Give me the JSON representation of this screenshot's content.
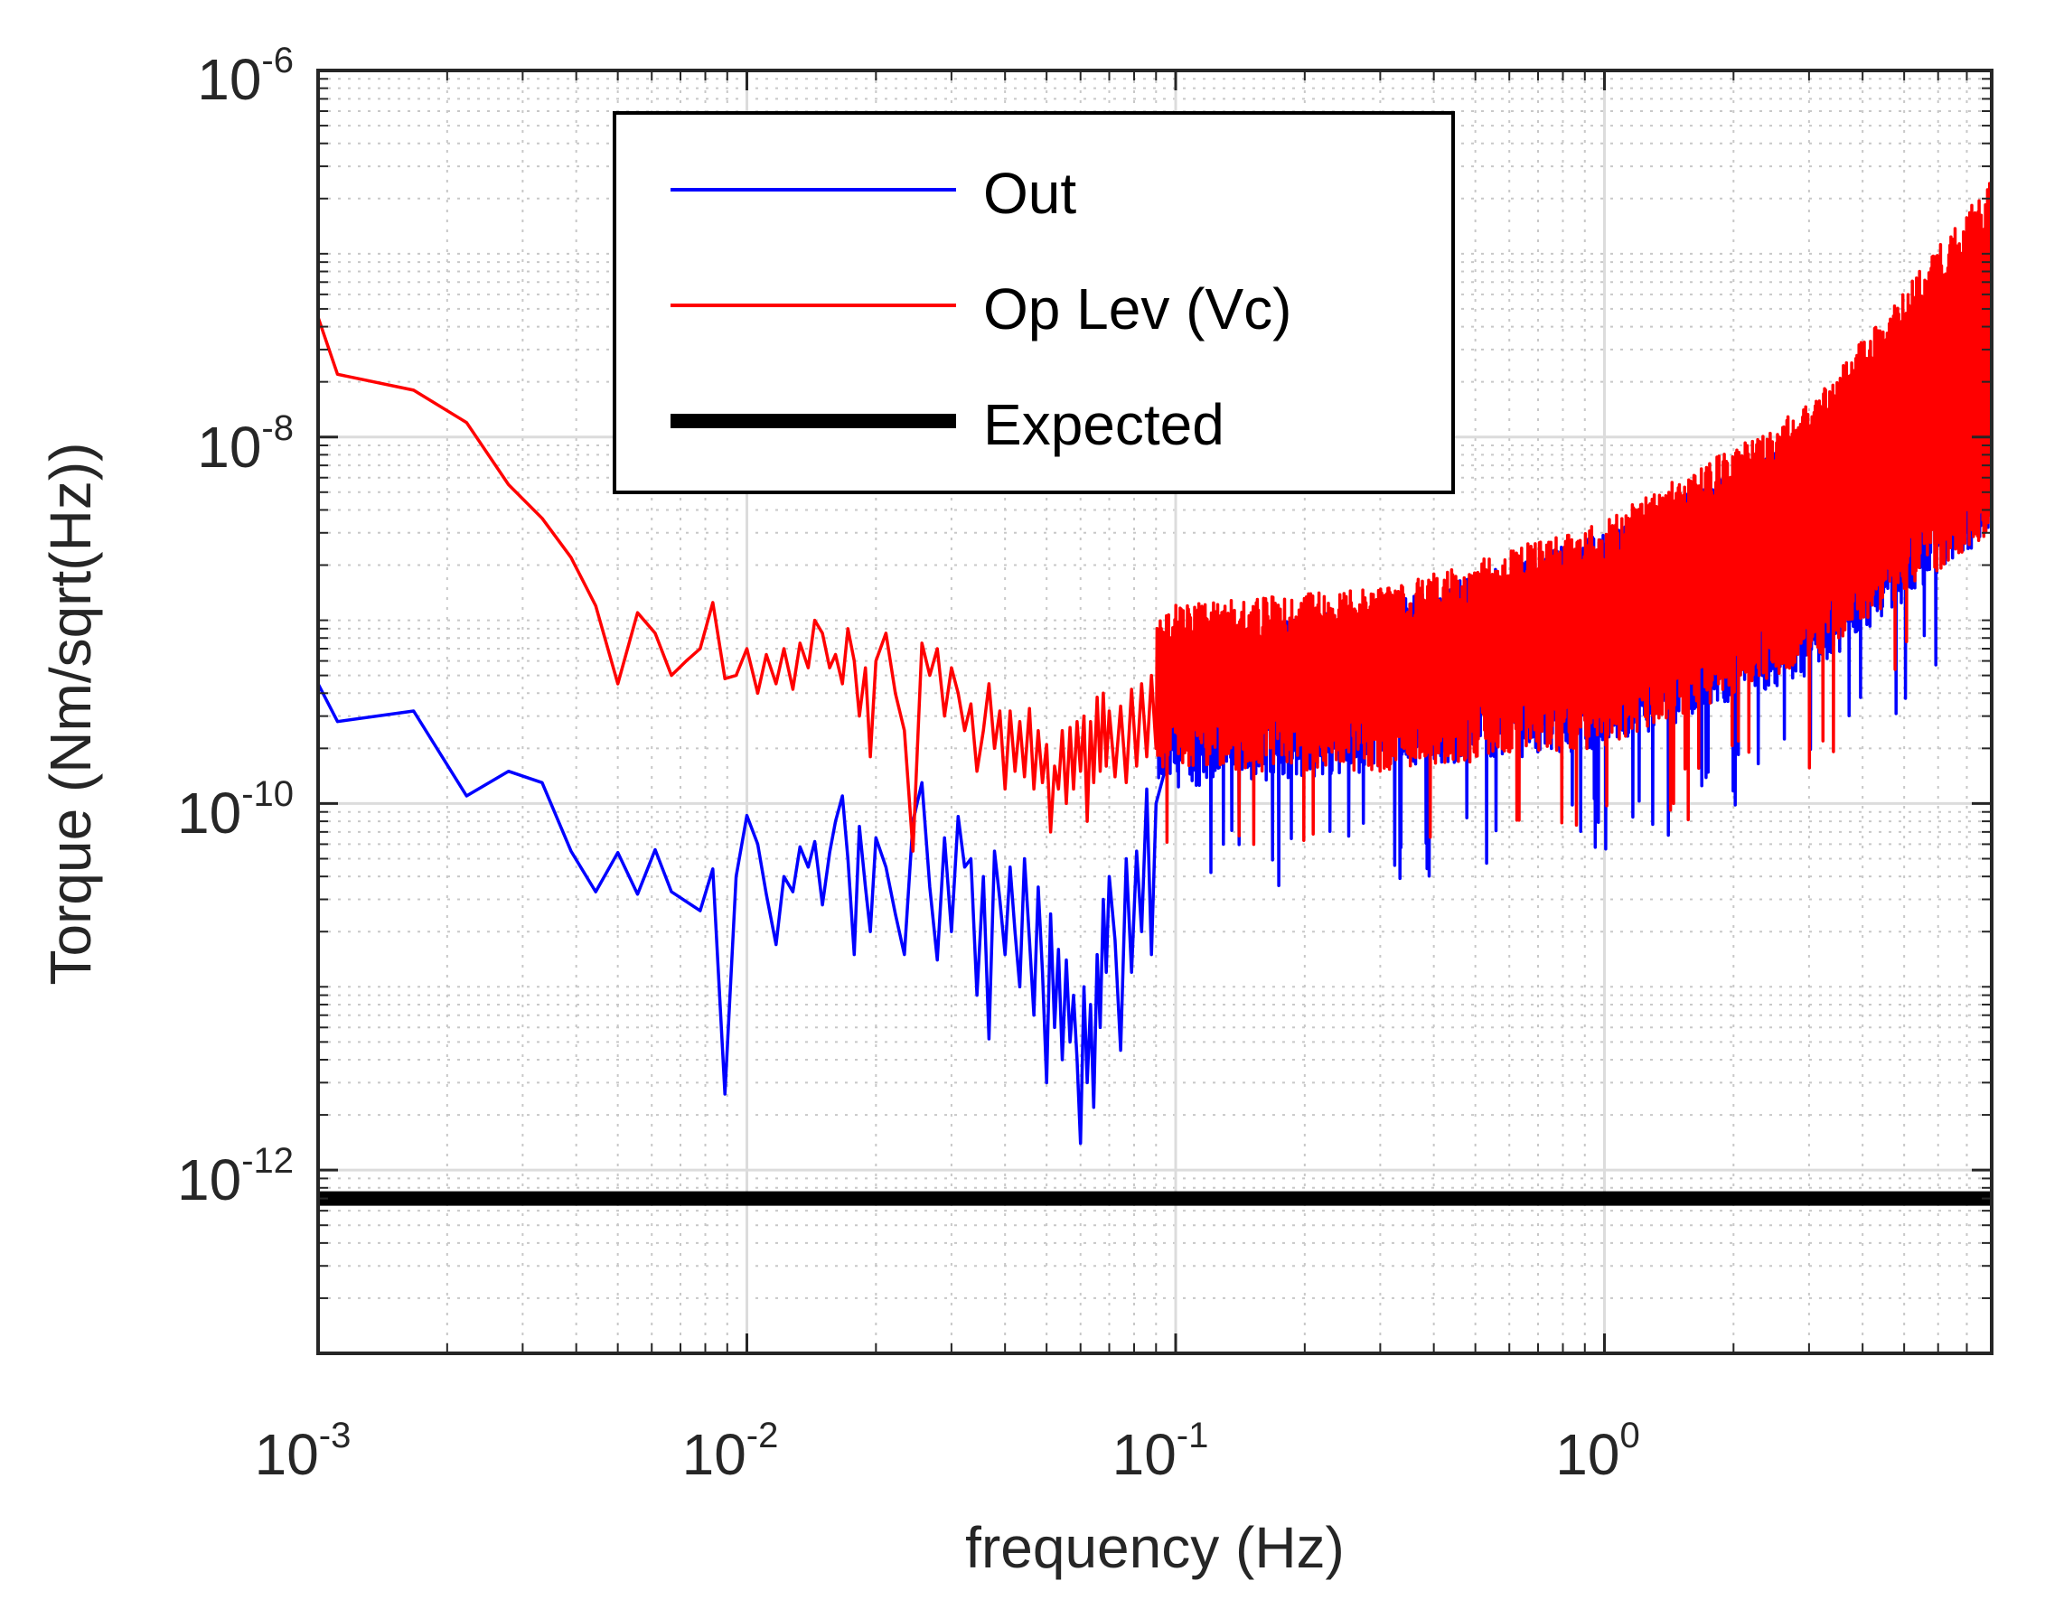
{
  "chart_data": {
    "type": "line",
    "title": "",
    "xlabel": "frequency (Hz)",
    "ylabel": "Torque (Nm/sqrt(Hz))",
    "xscale": "log",
    "yscale": "log",
    "xlim": [
      0.001,
      8
    ],
    "ylim": [
      1e-13,
      1e-06
    ],
    "grid": true,
    "x_ticks": [
      {
        "value": 0.001,
        "base": "10",
        "exp": "-3"
      },
      {
        "value": 0.01,
        "base": "10",
        "exp": "-2"
      },
      {
        "value": 0.1,
        "base": "10",
        "exp": "-1"
      },
      {
        "value": 1,
        "base": "10",
        "exp": "0"
      }
    ],
    "y_ticks": [
      {
        "value": 1e-12,
        "base": "10",
        "exp": "-12"
      },
      {
        "value": 1e-10,
        "base": "10",
        "exp": "-10"
      },
      {
        "value": 1e-08,
        "base": "10",
        "exp": "-8"
      },
      {
        "value": 1e-06,
        "base": "10",
        "exp": "-6"
      }
    ],
    "legend": {
      "location": "top-center",
      "entries": [
        {
          "label": "Out",
          "series": "out"
        },
        {
          "label": "Op Lev (Vc)",
          "series": "oplev"
        },
        {
          "label": "Expected",
          "series": "expected"
        }
      ]
    },
    "series": [
      {
        "id": "out",
        "name": "Out",
        "color": "#0000ff",
        "line_weight": "thin",
        "points": [
          [
            0.001,
            4.5e-10
          ],
          [
            0.00111,
            2.8e-10
          ],
          [
            0.00167,
            3.2e-10
          ],
          [
            0.00222,
            1.1e-10
          ],
          [
            0.00278,
            1.5e-10
          ],
          [
            0.00333,
            1.3e-10
          ],
          [
            0.00389,
            5.5e-11
          ],
          [
            0.00444,
            3.3e-11
          ],
          [
            0.005,
            5.4e-11
          ],
          [
            0.00556,
            3.2e-11
          ],
          [
            0.00611,
            5.6e-11
          ],
          [
            0.00667,
            3.3e-11
          ],
          [
            0.00778,
            2.6e-11
          ],
          [
            0.00833,
            4.4e-11
          ],
          [
            0.00889,
            2.6e-12
          ],
          [
            0.00944,
            4e-11
          ],
          [
            0.01,
            8.6e-11
          ],
          [
            0.0106,
            6e-11
          ],
          [
            0.0111,
            3.2e-11
          ],
          [
            0.0117,
            1.7e-11
          ],
          [
            0.0122,
            4e-11
          ],
          [
            0.0128,
            3.3e-11
          ],
          [
            0.0133,
            5.8e-11
          ],
          [
            0.0139,
            4.5e-11
          ],
          [
            0.0144,
            6.2e-11
          ],
          [
            0.015,
            2.8e-11
          ],
          [
            0.0156,
            5.4e-11
          ],
          [
            0.0161,
            8e-11
          ],
          [
            0.0167,
            1.1e-10
          ],
          [
            0.0172,
            5e-11
          ],
          [
            0.0178,
            1.5e-11
          ],
          [
            0.0183,
            7.5e-11
          ],
          [
            0.0189,
            3.5e-11
          ],
          [
            0.0194,
            2e-11
          ],
          [
            0.02,
            6.5e-11
          ],
          [
            0.0211,
            4.5e-11
          ],
          [
            0.0222,
            2.5e-11
          ],
          [
            0.0233,
            1.5e-11
          ],
          [
            0.0244,
            8e-11
          ],
          [
            0.0256,
            1.3e-10
          ],
          [
            0.0267,
            3.5e-11
          ],
          [
            0.0278,
            1.4e-11
          ],
          [
            0.0289,
            6.5e-11
          ],
          [
            0.03,
            2e-11
          ],
          [
            0.0311,
            8.5e-11
          ],
          [
            0.0322,
            4.5e-11
          ],
          [
            0.0333,
            5e-11
          ],
          [
            0.0344,
            9e-12
          ],
          [
            0.0356,
            4e-11
          ],
          [
            0.0367,
            5.2e-12
          ],
          [
            0.0378,
            5.5e-11
          ],
          [
            0.0389,
            3e-11
          ],
          [
            0.04,
            1.5e-11
          ],
          [
            0.0411,
            4.5e-11
          ],
          [
            0.0422,
            2e-11
          ],
          [
            0.0433,
            1e-11
          ],
          [
            0.0444,
            5e-11
          ],
          [
            0.0456,
            1.8e-11
          ],
          [
            0.0467,
            7e-12
          ],
          [
            0.0478,
            3.5e-11
          ],
          [
            0.0489,
            1.2e-11
          ],
          [
            0.05,
            3e-12
          ],
          [
            0.0511,
            2.5e-11
          ],
          [
            0.0522,
            6e-12
          ],
          [
            0.0533,
            1.6e-11
          ],
          [
            0.0544,
            4e-12
          ],
          [
            0.0556,
            1.4e-11
          ],
          [
            0.0567,
            5e-12
          ],
          [
            0.0578,
            9e-12
          ],
          [
            0.0589,
            4e-12
          ],
          [
            0.06,
            1.4e-12
          ],
          [
            0.0611,
            1e-11
          ],
          [
            0.0622,
            3e-12
          ],
          [
            0.0633,
            8e-12
          ],
          [
            0.0644,
            2.2e-12
          ],
          [
            0.0656,
            1.5e-11
          ],
          [
            0.0667,
            6e-12
          ],
          [
            0.0678,
            3e-11
          ],
          [
            0.0689,
            1.2e-11
          ],
          [
            0.07,
            4e-11
          ],
          [
            0.0722,
            1.8e-11
          ],
          [
            0.0744,
            4.5e-12
          ],
          [
            0.0767,
            5e-11
          ],
          [
            0.0789,
            1.2e-11
          ],
          [
            0.0811,
            5.5e-11
          ],
          [
            0.0833,
            2e-11
          ],
          [
            0.0856,
            1.2e-10
          ],
          [
            0.0878,
            1.5e-11
          ],
          [
            0.09,
            1e-10
          ],
          [
            0.1,
            2.5e-10
          ],
          [
            0.12,
            3e-10
          ]
        ]
      },
      {
        "id": "oplev",
        "name": "Op Lev (Vc)",
        "color": "#ff0000",
        "line_weight": "thin",
        "points": [
          [
            0.001,
            4.5e-08
          ],
          [
            0.00111,
            2.2e-08
          ],
          [
            0.00167,
            1.8e-08
          ],
          [
            0.00222,
            1.2e-08
          ],
          [
            0.00278,
            5.5e-09
          ],
          [
            0.00333,
            3.6e-09
          ],
          [
            0.00389,
            2.2e-09
          ],
          [
            0.00444,
            1.2e-09
          ],
          [
            0.005,
            4.5e-10
          ],
          [
            0.00556,
            1.1e-09
          ],
          [
            0.00611,
            8.5e-10
          ],
          [
            0.00667,
            5e-10
          ],
          [
            0.00722,
            6e-10
          ],
          [
            0.00778,
            7e-10
          ],
          [
            0.00833,
            1.25e-09
          ],
          [
            0.00889,
            4.8e-10
          ],
          [
            0.00944,
            5e-10
          ],
          [
            0.01,
            7e-10
          ],
          [
            0.0106,
            4e-10
          ],
          [
            0.0111,
            6.5e-10
          ],
          [
            0.0117,
            4.5e-10
          ],
          [
            0.0122,
            7e-10
          ],
          [
            0.0128,
            4.2e-10
          ],
          [
            0.0133,
            7.5e-10
          ],
          [
            0.0139,
            5.5e-10
          ],
          [
            0.0144,
            1e-09
          ],
          [
            0.015,
            8.5e-10
          ],
          [
            0.0156,
            5.5e-10
          ],
          [
            0.0161,
            6.5e-10
          ],
          [
            0.0167,
            4.5e-10
          ],
          [
            0.0172,
            9e-10
          ],
          [
            0.0178,
            6e-10
          ],
          [
            0.0183,
            3e-10
          ],
          [
            0.0189,
            5.5e-10
          ],
          [
            0.0194,
            1.8e-10
          ],
          [
            0.02,
            6e-10
          ],
          [
            0.0211,
            8.5e-10
          ],
          [
            0.0222,
            4e-10
          ],
          [
            0.0233,
            2.5e-10
          ],
          [
            0.0244,
            5.5e-11
          ],
          [
            0.0256,
            7.5e-10
          ],
          [
            0.0267,
            5e-10
          ],
          [
            0.0278,
            7e-10
          ],
          [
            0.0289,
            3e-10
          ],
          [
            0.03,
            5.5e-10
          ],
          [
            0.0311,
            4e-10
          ],
          [
            0.0322,
            2.5e-10
          ],
          [
            0.0333,
            3.5e-10
          ],
          [
            0.0344,
            1.5e-10
          ],
          [
            0.0356,
            2.5e-10
          ],
          [
            0.0367,
            4.5e-10
          ],
          [
            0.0378,
            2e-10
          ],
          [
            0.0389,
            3.2e-10
          ],
          [
            0.04,
            1.2e-10
          ],
          [
            0.0411,
            3.2e-10
          ],
          [
            0.0422,
            1.5e-10
          ],
          [
            0.0433,
            2.8e-10
          ],
          [
            0.0444,
            1.4e-10
          ],
          [
            0.0456,
            3.3e-10
          ],
          [
            0.0467,
            1.2e-10
          ],
          [
            0.0478,
            2.5e-10
          ],
          [
            0.0489,
            1.3e-10
          ],
          [
            0.05,
            2.1e-10
          ],
          [
            0.0511,
            7e-11
          ],
          [
            0.0522,
            1.6e-10
          ],
          [
            0.0533,
            1.2e-10
          ],
          [
            0.0544,
            2.5e-10
          ],
          [
            0.0556,
            1e-10
          ],
          [
            0.0567,
            2.6e-10
          ],
          [
            0.0578,
            1.2e-10
          ],
          [
            0.0589,
            2.8e-10
          ],
          [
            0.06,
            1.5e-10
          ],
          [
            0.0611,
            3e-10
          ],
          [
            0.0622,
            8e-11
          ],
          [
            0.0633,
            2.8e-10
          ],
          [
            0.0644,
            1.3e-10
          ],
          [
            0.0656,
            3.8e-10
          ],
          [
            0.0667,
            1.5e-10
          ],
          [
            0.0678,
            4e-10
          ],
          [
            0.0689,
            1.6e-10
          ],
          [
            0.07,
            3.2e-10
          ],
          [
            0.0722,
            1.4e-10
          ],
          [
            0.0744,
            3.4e-10
          ],
          [
            0.0767,
            1.3e-10
          ],
          [
            0.0789,
            4.2e-10
          ],
          [
            0.0811,
            1.6e-10
          ],
          [
            0.0833,
            4.5e-10
          ],
          [
            0.0856,
            1.8e-10
          ],
          [
            0.0878,
            5e-10
          ],
          [
            0.09,
            2e-10
          ]
        ]
      },
      {
        "id": "expected",
        "name": "Expected",
        "color": "#000000",
        "line_weight": "thick",
        "points": [
          [
            0.001,
            7e-13
          ],
          [
            8,
            7e-13
          ]
        ]
      }
    ],
    "noisy_region": {
      "x_start": 0.09,
      "x_end": 8,
      "out_envelope": [
        [
          0.09,
          1.2e-10,
          8e-10
        ],
        [
          0.3,
          1.5e-10,
          1.2e-09
        ],
        [
          1,
          2e-10,
          3e-09
        ],
        [
          3,
          5e-10,
          1e-08
        ],
        [
          8,
          3e-09,
          3e-08
        ]
      ],
      "oplev_envelope": [
        [
          0.09,
          1.5e-10,
          1.2e-09
        ],
        [
          0.3,
          1.5e-10,
          1.5e-09
        ],
        [
          1,
          2e-10,
          3.5e-09
        ],
        [
          3,
          6e-10,
          1.5e-08
        ],
        [
          8,
          3e-09,
          2.5e-07
        ]
      ]
    }
  }
}
